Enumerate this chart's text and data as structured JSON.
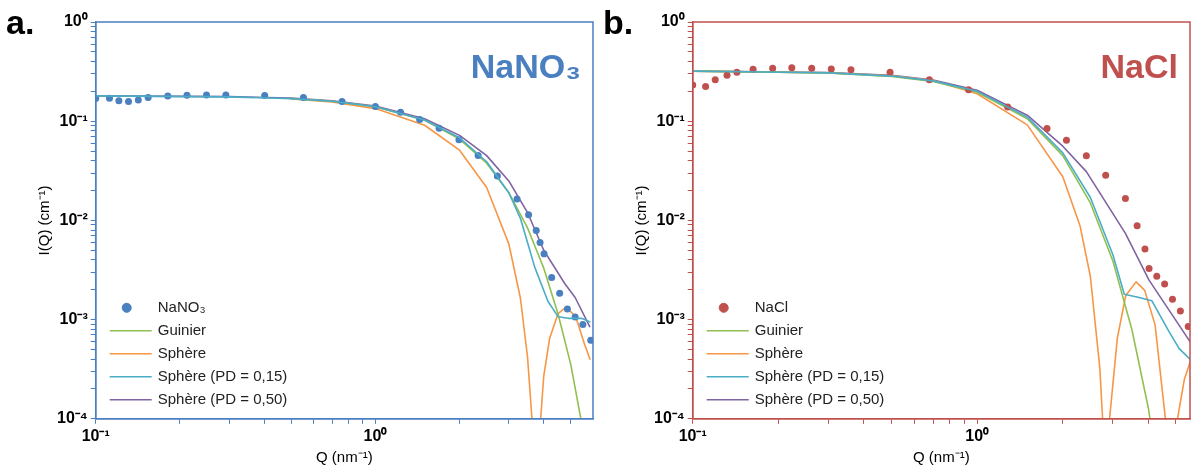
{
  "chart_data": [
    {
      "type": "line",
      "title": "a.",
      "xlabel": "Q (nm⁻¹)",
      "ylabel": "I(Q) (cm⁻¹)",
      "annotations": [
        "NaNO₃"
      ],
      "log": "xy",
      "legend": "bottom left",
      "xlim": [
        0.1,
        6
      ],
      "ylim": [
        0.0001,
        1
      ],
      "xticks": [
        {
          "value": 0.1,
          "label": "10⁻¹"
        },
        {
          "value": 0.2,
          "label": null
        },
        {
          "value": 0.3,
          "label": null
        },
        {
          "value": 0.4,
          "label": null
        },
        {
          "value": 0.5,
          "label": null
        },
        {
          "value": 0.6,
          "label": null
        },
        {
          "value": 0.7,
          "label": null
        },
        {
          "value": 0.8,
          "label": null
        },
        {
          "value": 0.9,
          "label": null
        },
        {
          "value": 1,
          "label": "10⁰"
        },
        {
          "value": 2,
          "label": null
        },
        {
          "value": 3,
          "label": null
        },
        {
          "value": 4,
          "label": null
        },
        {
          "value": 5,
          "label": null
        }
      ],
      "yticks": [
        {
          "value": 0.0001,
          "label": "10⁻⁴"
        },
        {
          "value": 0.0002,
          "label": null
        },
        {
          "value": 0.0003,
          "label": null
        },
        {
          "value": 0.0004,
          "label": null
        },
        {
          "value": 0.0005,
          "label": null
        },
        {
          "value": 0.0006,
          "label": null
        },
        {
          "value": 0.0007,
          "label": null
        },
        {
          "value": 0.0008,
          "label": null
        },
        {
          "value": 0.0009,
          "label": null
        },
        {
          "value": 0.001,
          "label": "10⁻³"
        },
        {
          "value": 0.002,
          "label": null
        },
        {
          "value": 0.003,
          "label": null
        },
        {
          "value": 0.004,
          "label": null
        },
        {
          "value": 0.005,
          "label": null
        },
        {
          "value": 0.006,
          "label": null
        },
        {
          "value": 0.007,
          "label": null
        },
        {
          "value": 0.008,
          "label": null
        },
        {
          "value": 0.009,
          "label": null
        },
        {
          "value": 0.01,
          "label": "10⁻²"
        },
        {
          "value": 0.02,
          "label": null
        },
        {
          "value": 0.03,
          "label": null
        },
        {
          "value": 0.04,
          "label": null
        },
        {
          "value": 0.05,
          "label": null
        },
        {
          "value": 0.06,
          "label": null
        },
        {
          "value": 0.07,
          "label": null
        },
        {
          "value": 0.08,
          "label": null
        },
        {
          "value": 0.09,
          "label": null
        },
        {
          "value": 0.1,
          "label": "10⁻¹"
        },
        {
          "value": 0.2,
          "label": null
        },
        {
          "value": 0.3,
          "label": null
        },
        {
          "value": 0.4,
          "label": null
        },
        {
          "value": 0.5,
          "label": null
        },
        {
          "value": 0.6,
          "label": null
        },
        {
          "value": 0.7,
          "label": null
        },
        {
          "value": 0.8,
          "label": null
        },
        {
          "value": 0.9,
          "label": null
        },
        {
          "value": 1,
          "label": "10⁰"
        }
      ],
      "series": [
        {
          "name": "NaNO₃",
          "type": "scatter",
          "marker": "circle",
          "color": "#4a7fc0",
          "x": [
            0.1,
            0.112,
            0.121,
            0.131,
            0.142,
            0.154,
            0.181,
            0.212,
            0.249,
            0.292,
            0.402,
            0.553,
            0.76,
            1.0,
            1.23,
            1.44,
            1.69,
            1.99,
            2.33,
            2.73,
            3.21,
            3.53,
            3.76,
            3.88,
            4.01,
            4.27,
            4.56,
            4.86,
            5.18,
            5.52,
            5.89
          ],
          "values": [
            0.169,
            0.17,
            0.161,
            0.158,
            0.164,
            0.173,
            0.18,
            0.183,
            0.184,
            0.184,
            0.182,
            0.173,
            0.158,
            0.141,
            0.123,
            0.104,
            0.085,
            0.065,
            0.045,
            0.028,
            0.0164,
            0.0114,
            0.0079,
            0.006,
            0.0046,
            0.00265,
            0.00184,
            0.00128,
            0.00106,
            0.00089,
            0.00062
          ]
        },
        {
          "name": "Guinier",
          "type": "line",
          "color": "#92c050",
          "x": [
            0.5,
            0.7,
            1,
            1.5,
            2,
            2.5,
            3,
            3.5,
            4,
            4.5,
            5,
            5.43
          ],
          "values": [
            0.169,
            0.159,
            0.14,
            0.102,
            0.066,
            0.0377,
            0.019,
            0.0084,
            0.0033,
            0.00114,
            0.00035,
            0.0001
          ]
        },
        {
          "name": "Sphère",
          "type": "line",
          "color": "#f79646",
          "x": [
            0.5,
            0.7,
            1,
            1.5,
            2,
            2.5,
            3,
            3.3,
            3.5,
            3.63,
            3.75,
            3.9,
            4.0,
            4.2,
            4.5,
            4.8,
            5.2,
            5.6,
            5.85
          ],
          "values": [
            0.168,
            0.156,
            0.134,
            0.091,
            0.051,
            0.0215,
            0.0058,
            0.00165,
            0.00042,
            0.0001,
            null,
            0.0001,
            0.00027,
            0.00065,
            0.00115,
            0.00133,
            0.00108,
            0.00056,
            0.0004
          ]
        },
        {
          "name": "Sphère (PD = 0,15)",
          "type": "line",
          "color": "#4bacc6",
          "x": [
            0.1,
            0.3,
            0.5,
            0.7,
            1,
            1.5,
            2,
            2.5,
            3,
            3.3,
            3.5,
            3.71,
            4.14,
            4.5,
            4.89,
            5.46,
            5.84
          ],
          "values": [
            0.18,
            0.176,
            0.169,
            0.159,
            0.14,
            0.103,
            0.068,
            0.039,
            0.019,
            0.0105,
            0.006,
            0.0034,
            0.00153,
            0.00107,
            0.00103,
            0.00103,
            0.00095
          ]
        },
        {
          "name": "Sphère (PD = 0,50)",
          "type": "line",
          "color": "#8064a2",
          "x": [
            0.1,
            0.3,
            0.5,
            0.7,
            1,
            1.5,
            2,
            2.5,
            3,
            3.5,
            4,
            4.76,
            5.18,
            5.84
          ],
          "values": [
            0.18,
            0.177,
            0.171,
            0.161,
            0.142,
            0.106,
            0.072,
            0.045,
            0.025,
            0.012,
            0.005,
            0.0023,
            0.00167,
            0.00085
          ]
        }
      ]
    },
    {
      "type": "line",
      "title": "b.",
      "xlabel": "Q (nm⁻¹)",
      "ylabel": "I(Q) (cm⁻¹)",
      "annotations": [
        "NaCl"
      ],
      "log": "xy",
      "legend": "bottom left",
      "xlim": [
        0.1,
        5.6
      ],
      "ylim": [
        0.0001,
        1
      ],
      "xticks": [
        {
          "value": 0.1,
          "label": "10⁻¹"
        },
        {
          "value": 0.2,
          "label": null
        },
        {
          "value": 0.3,
          "label": null
        },
        {
          "value": 0.4,
          "label": null
        },
        {
          "value": 0.5,
          "label": null
        },
        {
          "value": 0.6,
          "label": null
        },
        {
          "value": 0.7,
          "label": null
        },
        {
          "value": 0.8,
          "label": null
        },
        {
          "value": 0.9,
          "label": null
        },
        {
          "value": 1,
          "label": "10⁰"
        },
        {
          "value": 2,
          "label": null
        },
        {
          "value": 3,
          "label": null
        },
        {
          "value": 4,
          "label": null
        },
        {
          "value": 5,
          "label": null
        }
      ],
      "yticks": [
        {
          "value": 0.0001,
          "label": "10⁻⁴"
        },
        {
          "value": 0.0002,
          "label": null
        },
        {
          "value": 0.0003,
          "label": null
        },
        {
          "value": 0.0004,
          "label": null
        },
        {
          "value": 0.0005,
          "label": null
        },
        {
          "value": 0.0006,
          "label": null
        },
        {
          "value": 0.0007,
          "label": null
        },
        {
          "value": 0.0008,
          "label": null
        },
        {
          "value": 0.0009,
          "label": null
        },
        {
          "value": 0.001,
          "label": "10⁻³"
        },
        {
          "value": 0.002,
          "label": null
        },
        {
          "value": 0.003,
          "label": null
        },
        {
          "value": 0.004,
          "label": null
        },
        {
          "value": 0.005,
          "label": null
        },
        {
          "value": 0.006,
          "label": null
        },
        {
          "value": 0.007,
          "label": null
        },
        {
          "value": 0.008,
          "label": null
        },
        {
          "value": 0.009,
          "label": null
        },
        {
          "value": 0.01,
          "label": "10⁻²"
        },
        {
          "value": 0.02,
          "label": null
        },
        {
          "value": 0.03,
          "label": null
        },
        {
          "value": 0.04,
          "label": null
        },
        {
          "value": 0.05,
          "label": null
        },
        {
          "value": 0.06,
          "label": null
        },
        {
          "value": 0.07,
          "label": null
        },
        {
          "value": 0.08,
          "label": null
        },
        {
          "value": 0.09,
          "label": null
        },
        {
          "value": 0.1,
          "label": "10⁻¹"
        },
        {
          "value": 0.2,
          "label": null
        },
        {
          "value": 0.3,
          "label": null
        },
        {
          "value": 0.4,
          "label": null
        },
        {
          "value": 0.5,
          "label": null
        },
        {
          "value": 0.6,
          "label": null
        },
        {
          "value": 0.7,
          "label": null
        },
        {
          "value": 0.8,
          "label": null
        },
        {
          "value": 0.9,
          "label": null
        },
        {
          "value": 1,
          "label": "10⁰"
        }
      ],
      "series": [
        {
          "name": "NaCl",
          "type": "scatter",
          "marker": "circle",
          "color": "#c0504d",
          "x": [
            0.1,
            0.111,
            0.12,
            0.132,
            0.143,
            0.163,
            0.191,
            0.223,
            0.262,
            0.307,
            0.36,
            0.494,
            0.679,
            0.933,
            1.28,
            1.76,
            2.06,
            2.42,
            2.83,
            3.32,
            3.65,
            3.89,
            4.02,
            4.28,
            4.56,
            4.86,
            5.18,
            5.52
          ],
          "values": [
            0.232,
            0.224,
            0.261,
            0.291,
            0.312,
            0.333,
            0.342,
            0.345,
            0.342,
            0.336,
            0.33,
            0.312,
            0.261,
            0.208,
            0.139,
            0.0845,
            0.0644,
            0.0449,
            0.0286,
            0.0166,
            0.00885,
            0.00515,
            0.00328,
            0.00274,
            0.00229,
            0.0016,
            0.00122,
            0.00085
          ]
        },
        {
          "name": "Guinier",
          "type": "line",
          "color": "#92c050",
          "x": [
            0.1,
            0.3,
            0.5,
            0.7,
            1,
            1.5,
            2,
            2.5,
            3,
            3.5,
            4,
            4.05
          ],
          "values": [
            0.32,
            0.306,
            0.283,
            0.252,
            0.196,
            0.106,
            0.045,
            0.015,
            0.0039,
            0.00079,
            0.000127,
            0.0001
          ]
        },
        {
          "name": "Sphère",
          "type": "line",
          "color": "#f79646",
          "x": [
            0.1,
            0.3,
            0.5,
            0.7,
            1,
            1.5,
            2,
            2.3,
            2.5,
            2.7,
            2.76,
            2.84,
            2.92,
            3.11,
            3.33,
            3.62,
            3.88,
            4.22,
            4.59,
            4.8,
            5.06,
            5.35,
            5.6
          ],
          "values": [
            0.32,
            0.307,
            0.287,
            0.257,
            0.189,
            0.0918,
            0.0275,
            0.0088,
            0.00272,
            0.00032,
            0.0001,
            null,
            0.0001,
            0.00065,
            0.00175,
            0.0024,
            0.00197,
            0.00089,
            0.0001,
            null,
            0.0001,
            0.00025,
            0.00037
          ]
        },
        {
          "name": "Sphère (PD = 0,15)",
          "type": "line",
          "color": "#4bacc6",
          "x": [
            0.1,
            0.3,
            0.5,
            0.7,
            1,
            1.5,
            2,
            2.5,
            3,
            3.29,
            3.68,
            4.11,
            4.72,
            5.13,
            5.6
          ],
          "values": [
            0.32,
            0.307,
            0.285,
            0.255,
            0.2,
            0.11,
            0.048,
            0.017,
            0.0045,
            0.0018,
            0.00168,
            0.00155,
            0.00076,
            0.00051,
            0.0004
          ]
        },
        {
          "name": "Sphère (PD = 0,50)",
          "type": "line",
          "color": "#8064a2",
          "x": [
            0.1,
            0.3,
            0.5,
            0.7,
            1,
            1.5,
            2,
            2.42,
            3.32,
            4.02,
            5.6
          ],
          "values": [
            0.32,
            0.31,
            0.29,
            0.26,
            0.205,
            0.115,
            0.056,
            0.031,
            0.0074,
            0.0025,
            0.0006
          ]
        }
      ]
    }
  ]
}
